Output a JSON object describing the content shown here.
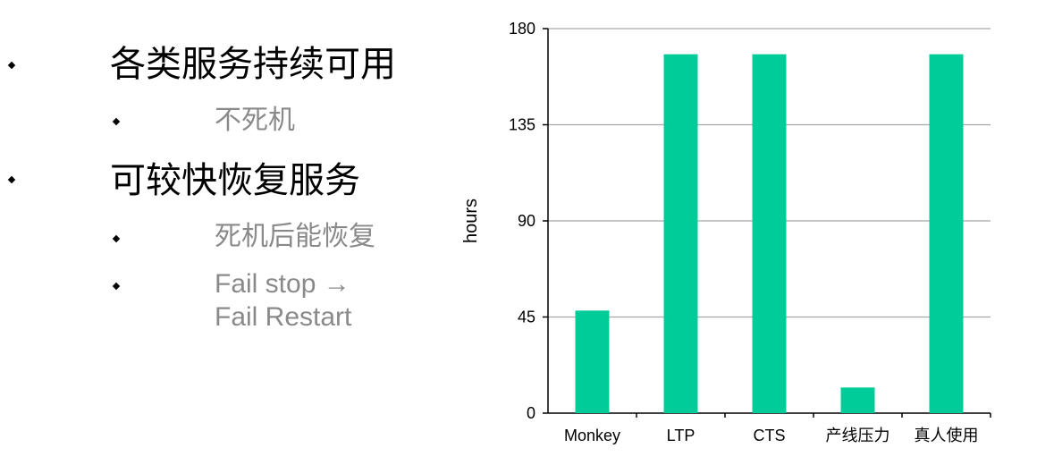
{
  "bullets": [
    {
      "level": 1,
      "text": "各类服务持续可用"
    },
    {
      "level": 2,
      "text": "不死机"
    },
    {
      "level": 1,
      "text": "可较快恢复服务"
    },
    {
      "level": 2,
      "text": "死机后能恢复"
    },
    {
      "level": 2,
      "lines": [
        "Fail stop →",
        "Fail Restart"
      ]
    }
  ],
  "colors": {
    "bar": "#00cc99",
    "grid": "#a6a6a6",
    "axis": "#000000",
    "secondary_text": "#8a8a8a"
  },
  "chart_data": {
    "type": "bar",
    "categories": [
      "Monkey",
      "LTP",
      "CTS",
      "产线压力",
      "真人使用"
    ],
    "values": [
      48,
      168,
      168,
      12,
      168
    ],
    "ylabel": "hours",
    "ylim": [
      0,
      180
    ],
    "yticks": [
      0,
      45,
      90,
      135,
      180
    ],
    "grid": true,
    "legend": "none"
  }
}
